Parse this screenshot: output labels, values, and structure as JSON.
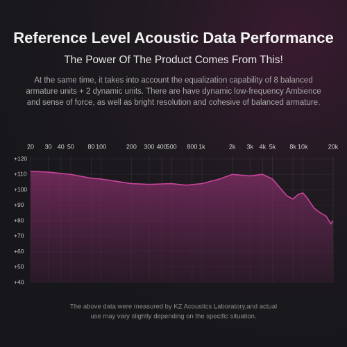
{
  "chart_data": {
    "type": "area",
    "title": "Reference Level Acoustic Data Performance",
    "subtitle": "The Power Of The Product Comes From This!",
    "description": [
      "At the same time, it takes into account the equalization capability of 8 balanced",
      "armature units + 2 dynamic units. There are have dynamic low-frequency Ambience",
      "and sense of force, as well as bright resolution and cohesive of balanced armature."
    ],
    "footnote": [
      "The above data were measured by KZ Acoustics Laboratory,and actual",
      "use may vary slightly depending on the specific situation."
    ],
    "x": [
      20,
      30,
      50,
      80,
      100,
      200,
      300,
      500,
      700,
      1000,
      1500,
      2000,
      3000,
      4000,
      5000,
      6000,
      7000,
      8000,
      9000,
      10000,
      11000,
      13000,
      15000,
      17000,
      19000,
      20000
    ],
    "series": [
      {
        "color": "#c9449a",
        "values": [
          112,
          111.5,
          110,
          107.5,
          107,
          104,
          103.5,
          104,
          103,
          104,
          107,
          110,
          109,
          110,
          107,
          101,
          96,
          94,
          97,
          98,
          95,
          88,
          85,
          83,
          78,
          80
        ]
      }
    ],
    "xlog": true,
    "xlim": [
      20,
      20000
    ],
    "xticks": [
      20,
      30,
      40,
      50,
      80,
      100,
      200,
      300,
      400,
      500,
      800,
      {
        "value": 1000,
        "label": "1k"
      },
      {
        "value": 2000,
        "label": "2k"
      },
      {
        "value": 3000,
        "label": "3k"
      },
      {
        "value": 4000,
        "label": "4k"
      },
      {
        "value": 5000,
        "label": "5k"
      },
      {
        "value": 8000,
        "label": "8k"
      },
      {
        "value": 10000,
        "label": "10k"
      },
      {
        "value": 20000,
        "label": "20k"
      }
    ],
    "ylim": [
      40,
      120
    ],
    "yticks": [
      {
        "value": 120,
        "label": "+120"
      },
      {
        "value": 110,
        "label": "+110"
      },
      {
        "value": 100,
        "label": "+100"
      },
      {
        "value": 90,
        "label": "+90"
      },
      {
        "value": 80,
        "label": "+80"
      },
      {
        "value": 70,
        "label": "+70"
      },
      {
        "value": 60,
        "label": "+60"
      },
      {
        "value": 50,
        "label": "+50"
      },
      {
        "value": 40,
        "label": "+40"
      }
    ],
    "grid": true
  }
}
